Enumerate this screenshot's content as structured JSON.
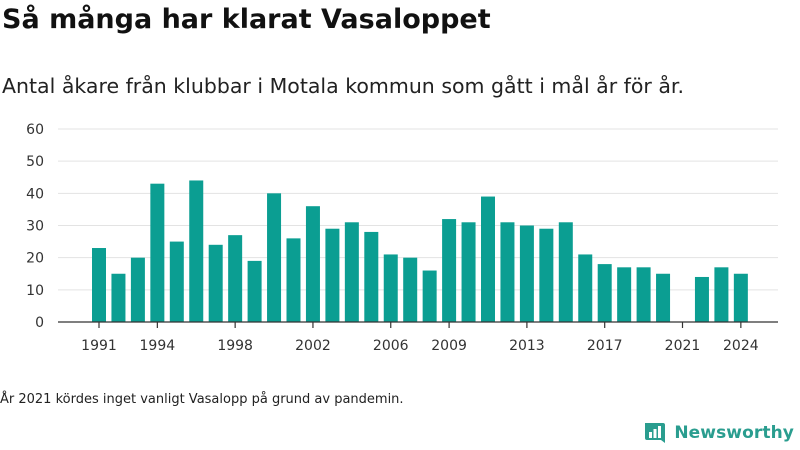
{
  "title": "Så många har klarat Vasaloppet",
  "subtitle": "Antal åkare från klubbar i Motala kommun som gått i mål år för år.",
  "footnote": "År 2021 kördes inget vanligt Vasalopp på grund av pandemin.",
  "brand": {
    "name": "Newsworthy",
    "color": "#2a9d8f",
    "icon": "newsworthy-logo-icon"
  },
  "colors": {
    "bar": "#0b9e92",
    "grid": "#e3e3e3",
    "axis": "#333333"
  },
  "chart_data": {
    "type": "bar",
    "title": "",
    "xlabel": "",
    "ylabel": "",
    "ylim": [
      0,
      60
    ],
    "yticks": [
      0,
      10,
      20,
      30,
      40,
      50,
      60
    ],
    "xticks": [
      1991,
      1994,
      1998,
      2002,
      2006,
      2009,
      2013,
      2017,
      2021,
      2024
    ],
    "grid": true,
    "legend": "none",
    "categories": [
      1991,
      1992,
      1993,
      1994,
      1995,
      1996,
      1997,
      1998,
      1999,
      2000,
      2001,
      2002,
      2003,
      2004,
      2005,
      2006,
      2007,
      2008,
      2009,
      2010,
      2011,
      2012,
      2013,
      2014,
      2015,
      2016,
      2017,
      2018,
      2019,
      2020,
      2021,
      2022,
      2023,
      2024
    ],
    "values": [
      23,
      15,
      20,
      43,
      25,
      44,
      24,
      27,
      19,
      40,
      26,
      36,
      29,
      31,
      28,
      21,
      20,
      16,
      32,
      31,
      39,
      31,
      30,
      29,
      31,
      21,
      18,
      17,
      17,
      15,
      0,
      14,
      17,
      15
    ]
  }
}
